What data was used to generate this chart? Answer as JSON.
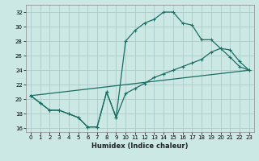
{
  "xlabel": "Humidex (Indice chaleur)",
  "bg_color": "#cce8e4",
  "grid_color": "#aacccc",
  "line_color": "#1a6e62",
  "line1_x": [
    0,
    1,
    2,
    3,
    4,
    5,
    6,
    7,
    8,
    9,
    10,
    11,
    12,
    13,
    14,
    15,
    16,
    17,
    18,
    19,
    20,
    21,
    22,
    23
  ],
  "line1_y": [
    20.5,
    19.5,
    18.5,
    18.5,
    18.0,
    17.5,
    16.2,
    16.2,
    21.0,
    17.5,
    28.0,
    29.5,
    30.5,
    31.0,
    32.0,
    32.0,
    30.5,
    30.2,
    28.2,
    28.2,
    27.0,
    25.8,
    24.5,
    24.0
  ],
  "line2_x": [
    0,
    1,
    2,
    3,
    4,
    5,
    6,
    7,
    8,
    9,
    10,
    11,
    12,
    13,
    14,
    15,
    16,
    17,
    18,
    19,
    20,
    21,
    22,
    23
  ],
  "line2_y": [
    20.5,
    19.5,
    18.5,
    18.5,
    18.0,
    17.5,
    16.2,
    16.2,
    21.0,
    17.5,
    20.8,
    21.5,
    22.2,
    23.0,
    23.5,
    24.0,
    24.5,
    25.0,
    25.5,
    26.5,
    27.0,
    26.8,
    25.2,
    24.0
  ],
  "line3_x": [
    0,
    23
  ],
  "line3_y": [
    20.5,
    24.0
  ],
  "xlim": [
    -0.5,
    23.5
  ],
  "ylim": [
    15.5,
    33.0
  ],
  "yticks": [
    16,
    18,
    20,
    22,
    24,
    26,
    28,
    30,
    32
  ],
  "xticks": [
    0,
    1,
    2,
    3,
    4,
    5,
    6,
    7,
    8,
    9,
    10,
    11,
    12,
    13,
    14,
    15,
    16,
    17,
    18,
    19,
    20,
    21,
    22,
    23
  ]
}
